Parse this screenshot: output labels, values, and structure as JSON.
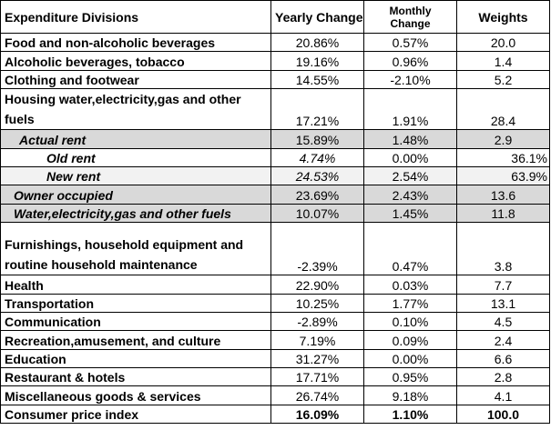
{
  "header": {
    "division": "Expenditure Divisions",
    "yearly": "Yearly Change",
    "monthly": "Monthly Change",
    "weights": "Weights"
  },
  "rows": [
    {
      "label": "Food and non-alcoholic beverages",
      "yearly": "20.86%",
      "monthly": "0.57%",
      "weight": "20.0"
    },
    {
      "label": "Alcoholic beverages, tobacco",
      "yearly": "19.16%",
      "monthly": "0.96%",
      "weight": "1.4"
    },
    {
      "label": "Clothing and footwear",
      "yearly": "14.55%",
      "monthly": "-2.10%",
      "weight": "5.2"
    },
    {
      "label": "Housing water,electricity,gas and other fuels",
      "yearly": "17.21%",
      "monthly": "1.91%",
      "weight": "28.4"
    },
    {
      "label": "Actual rent",
      "yearly": "15.89%",
      "monthly": "1.48%",
      "weight": "2.9"
    },
    {
      "label": "Old rent",
      "yearly": "4.74%",
      "monthly": "0.00%",
      "weight": "36.1%"
    },
    {
      "label": "New rent",
      "yearly": "24.53%",
      "monthly": "2.54%",
      "weight": "63.9%"
    },
    {
      "label": "Owner occupied",
      "yearly": "23.69%",
      "monthly": "2.43%",
      "weight": "13.6"
    },
    {
      "label": "Water,electricity,gas and other fuels",
      "yearly": "10.07%",
      "monthly": "1.45%",
      "weight": "11.8"
    },
    {
      "label": "Furnishings, household equipment and routine household maintenance",
      "yearly": "-2.39%",
      "monthly": "0.47%",
      "weight": "3.8"
    },
    {
      "label": "Health",
      "yearly": "22.90%",
      "monthly": "0.03%",
      "weight": "7.7"
    },
    {
      "label": "Transportation",
      "yearly": "10.25%",
      "monthly": "1.77%",
      "weight": "13.1"
    },
    {
      "label": "Communication",
      "yearly": "-2.89%",
      "monthly": "0.10%",
      "weight": "4.5"
    },
    {
      "label": "Recreation,amusement, and culture",
      "yearly": "7.19%",
      "monthly": "0.09%",
      "weight": "2.4"
    },
    {
      "label": "Education",
      "yearly": "31.27%",
      "monthly": "0.00%",
      "weight": "6.6"
    },
    {
      "label": "Restaurant & hotels",
      "yearly": "17.71%",
      "monthly": "0.95%",
      "weight": "2.8"
    },
    {
      "label": "Miscellaneous goods & services",
      "yearly": "26.74%",
      "monthly": "9.18%",
      "weight": "4.1"
    },
    {
      "label": "Consumer price index",
      "yearly": "16.09%",
      "monthly": "1.10%",
      "weight": "100.0"
    }
  ],
  "colors": {
    "grey_row": "#d9d9d9",
    "light_row": "#f2f2f2",
    "border": "#000000"
  }
}
